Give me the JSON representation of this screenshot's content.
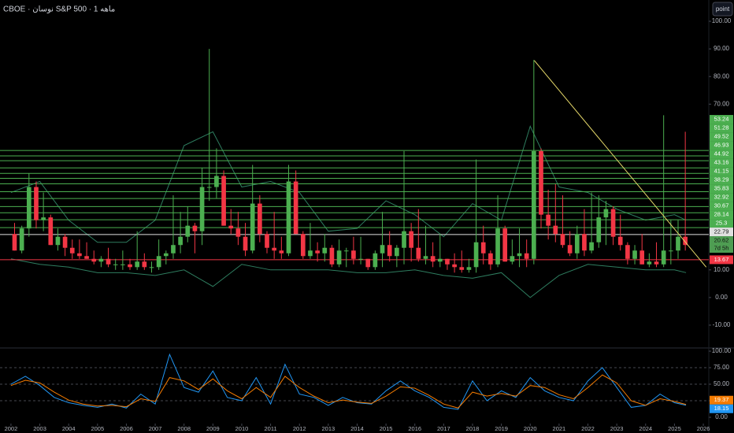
{
  "header": {
    "title": "CBOE · نوسان S&P 500 · 1 ماهه",
    "button": "point"
  },
  "chart_data": [
    {
      "type": "candlestick",
      "x": [
        2002.125,
        2002.375,
        2002.625,
        2002.875,
        2003.125,
        2003.375,
        2003.625,
        2003.875,
        2004.125,
        2004.375,
        2004.625,
        2004.875,
        2005.125,
        2005.375,
        2005.625,
        2005.875,
        2006.125,
        2006.375,
        2006.625,
        2006.875,
        2007.125,
        2007.375,
        2007.625,
        2007.875,
        2008.125,
        2008.375,
        2008.625,
        2008.875,
        2009.125,
        2009.375,
        2009.625,
        2009.875,
        2010.125,
        2010.375,
        2010.625,
        2010.875,
        2011.125,
        2011.375,
        2011.625,
        2011.875,
        2012.125,
        2012.375,
        2012.625,
        2012.875,
        2013.125,
        2013.375,
        2013.625,
        2013.875,
        2014.125,
        2014.375,
        2014.625,
        2014.875,
        2015.125,
        2015.375,
        2015.625,
        2015.875,
        2016.125,
        2016.375,
        2016.625,
        2016.875,
        2017.125,
        2017.375,
        2017.625,
        2017.875,
        2018.125,
        2018.375,
        2018.625,
        2018.875,
        2019.125,
        2019.375,
        2019.625,
        2019.875,
        2020.125,
        2020.375,
        2020.625,
        2020.875,
        2021.125,
        2021.375,
        2021.625,
        2021.875,
        2022.125,
        2022.375,
        2022.625,
        2022.875,
        2023.125,
        2023.375,
        2023.625,
        2023.875,
        2024.125,
        2024.375,
        2024.625,
        2024.875,
        2025.125,
        2025.375
      ],
      "open": [
        23,
        17,
        25,
        40,
        28,
        29,
        19,
        22,
        18,
        16,
        15,
        14,
        13,
        14,
        12,
        12,
        12,
        11,
        13,
        11,
        11,
        15,
        16,
        19,
        22,
        26,
        24,
        40,
        40,
        44,
        26,
        25,
        22,
        17,
        34,
        23,
        18,
        17,
        16,
        42,
        23,
        15,
        17,
        16,
        18,
        12,
        17,
        17,
        14,
        14,
        11,
        16,
        19,
        15,
        18,
        24,
        18,
        14,
        15,
        13,
        14,
        12,
        11,
        10,
        11,
        20,
        16,
        12,
        25,
        13,
        15,
        16,
        14,
        53,
        30,
        26,
        23,
        19,
        16,
        23,
        17,
        20,
        29,
        32,
        22,
        19,
        14,
        17,
        12,
        13,
        12,
        17,
        17,
        22
      ],
      "high": [
        27,
        26,
        45,
        42,
        38,
        30,
        25,
        23,
        21,
        21,
        20,
        17,
        15,
        18,
        14,
        17,
        14,
        24,
        16,
        13,
        21,
        17,
        37,
        31,
        33,
        27,
        47,
        90,
        54,
        46,
        32,
        31,
        27,
        48,
        37,
        24,
        31,
        22,
        48,
        46,
        24,
        27,
        20,
        23,
        19,
        21,
        18,
        22,
        22,
        14,
        17,
        31,
        24,
        19,
        53,
        27,
        32,
        26,
        20,
        23,
        14,
        16,
        17,
        14,
        50,
        26,
        17,
        37,
        26,
        21,
        25,
        21,
        86,
        54,
        39,
        41,
        37,
        24,
        26,
        32,
        38,
        37,
        35,
        33,
        30,
        20,
        19,
        23,
        16,
        20,
        66,
        28,
        28,
        60
      ],
      "low": [
        17,
        16,
        22,
        25,
        24,
        19,
        17,
        15,
        14,
        14,
        14,
        12,
        11,
        11,
        10,
        10,
        10,
        10,
        10,
        9,
        10,
        12,
        14,
        16,
        20,
        16,
        19,
        35,
        36,
        26,
        23,
        19,
        15,
        16,
        20,
        16,
        14,
        14,
        15,
        23,
        14,
        14,
        13,
        13,
        11,
        11,
        11,
        12,
        12,
        10,
        10,
        11,
        13,
        11,
        12,
        13,
        13,
        12,
        11,
        11,
        10,
        9,
        9,
        9,
        9,
        12,
        10,
        11,
        13,
        12,
        11,
        11,
        12,
        25,
        21,
        20,
        18,
        15,
        14,
        15,
        16,
        18,
        19,
        19,
        17,
        12,
        12,
        12,
        11,
        11,
        11,
        12,
        14,
        17
      ],
      "close": [
        17,
        25,
        40,
        28,
        29,
        19,
        22,
        18,
        16,
        15,
        14,
        13,
        14,
        12,
        12,
        12,
        11,
        13,
        11,
        11,
        15,
        16,
        19,
        22,
        26,
        24,
        40,
        40,
        44,
        26,
        25,
        22,
        17,
        34,
        23,
        18,
        17,
        16,
        42,
        23,
        15,
        17,
        16,
        18,
        12,
        17,
        17,
        14,
        14,
        11,
        16,
        19,
        15,
        18,
        24,
        18,
        14,
        15,
        13,
        14,
        12,
        11,
        10,
        11,
        20,
        16,
        12,
        25,
        13,
        15,
        16,
        14,
        53,
        30,
        26,
        23,
        19,
        16,
        23,
        17,
        20,
        29,
        32,
        22,
        19,
        14,
        17,
        12,
        13,
        12,
        17,
        17,
        22,
        19
      ],
      "up_color": "#4caf50",
      "down_color": "#f23645",
      "bands": {
        "color": "#2e7d5f",
        "x": [
          2002,
          2003,
          2004,
          2005,
          2006,
          2007,
          2008,
          2009,
          2010,
          2011,
          2012,
          2013,
          2014,
          2015,
          2016,
          2017,
          2018,
          2019,
          2020,
          2021,
          2022,
          2023,
          2024,
          2025,
          2025.4
        ],
        "upper": [
          38,
          42,
          28,
          20,
          20,
          28,
          55,
          60,
          40,
          42,
          38,
          24,
          25,
          35,
          30,
          22,
          34,
          28,
          62,
          40,
          38,
          32,
          28,
          30,
          28
        ],
        "lower": [
          14,
          12,
          11,
          9,
          9,
          8,
          10,
          4,
          12,
          10,
          10,
          10,
          9,
          9,
          10,
          8,
          7,
          9,
          0,
          8,
          12,
          11,
          10,
          10,
          9
        ]
      },
      "trendline": {
        "x": [
          2020.14,
          2026.1
        ],
        "values": [
          85.8,
          11
        ],
        "color": "#e6d96a"
      },
      "levels": [
        {
          "value": 53.24,
          "color": "#4caf50"
        },
        {
          "value": 51.28,
          "color": "#4caf50"
        },
        {
          "value": 49.52,
          "color": "#4caf50"
        },
        {
          "value": 46.93,
          "color": "#4caf50"
        },
        {
          "value": 44.92,
          "color": "#4caf50"
        },
        {
          "value": 43.16,
          "color": "#4caf50"
        },
        {
          "value": 41.15,
          "color": "#4caf50"
        },
        {
          "value": 38.29,
          "color": "#4caf50"
        },
        {
          "value": 35.83,
          "color": "#4caf50"
        },
        {
          "value": 32.92,
          "color": "#4caf50"
        },
        {
          "value": 30.67,
          "color": "#4caf50"
        },
        {
          "value": 28.14,
          "color": "#4caf50"
        },
        {
          "value": 25.3,
          "color": "#4caf50"
        },
        {
          "value": 22.79,
          "color": "#e0e0e0"
        },
        {
          "value": 13.67,
          "color": "#f23645"
        }
      ],
      "last_price": {
        "value": 20.62,
        "countdown": "7d 5h",
        "color": "#5cb860"
      },
      "xlim": [
        2001.62,
        2026.19
      ],
      "ylim": [
        -17.7,
        107.7
      ],
      "yticks": [
        {
          "value": -10,
          "label": "-10.00"
        },
        {
          "value": 0,
          "label": "0.00"
        },
        {
          "value": 10,
          "label": "10.00"
        },
        {
          "value": 70,
          "label": "70.00"
        },
        {
          "value": 80,
          "label": "80.00"
        },
        {
          "value": 90,
          "label": "90.00"
        },
        {
          "value": 100,
          "label": "100.00"
        }
      ]
    },
    {
      "type": "line",
      "x": [
        2002,
        2002.5,
        2003,
        2003.5,
        2004,
        2004.5,
        2005,
        2005.5,
        2006,
        2006.5,
        2007,
        2007.5,
        2008,
        2008.5,
        2009,
        2009.5,
        2010,
        2010.5,
        2011,
        2011.5,
        2012,
        2012.5,
        2013,
        2013.5,
        2014,
        2014.5,
        2015,
        2015.5,
        2016,
        2016.5,
        2017,
        2017.5,
        2018,
        2018.5,
        2019,
        2019.5,
        2020,
        2020.5,
        2021,
        2021.5,
        2022,
        2022.5,
        2023,
        2023.5,
        2024,
        2024.5,
        2025,
        2025.4
      ],
      "series": [
        {
          "color": "#2196f3",
          "values": [
            50,
            62,
            48,
            30,
            22,
            18,
            15,
            20,
            14,
            35,
            20,
            95,
            45,
            38,
            70,
            30,
            25,
            60,
            20,
            80,
            35,
            30,
            18,
            30,
            22,
            20,
            40,
            55,
            40,
            30,
            15,
            12,
            55,
            25,
            40,
            30,
            60,
            40,
            30,
            25,
            55,
            75,
            45,
            15,
            18,
            35,
            22,
            18.15
          ]
        },
        {
          "color": "#f57c00",
          "values": [
            48,
            56,
            52,
            38,
            26,
            20,
            17,
            18,
            16,
            28,
            24,
            60,
            55,
            42,
            58,
            40,
            28,
            45,
            30,
            62,
            45,
            32,
            22,
            26,
            23,
            21,
            32,
            46,
            44,
            33,
            20,
            14,
            38,
            32,
            36,
            32,
            48,
            45,
            34,
            28,
            45,
            64,
            52,
            25,
            18,
            28,
            24,
            19.37
          ]
        }
      ],
      "dashed_levels": [
        25,
        50,
        75
      ],
      "xlim": [
        2001.62,
        2026.19
      ],
      "ylim": [
        -9.5,
        103.6
      ],
      "xticks": [
        2002,
        2003,
        2004,
        2005,
        2006,
        2007,
        2008,
        2009,
        2010,
        2011,
        2012,
        2013,
        2014,
        2015,
        2016,
        2017,
        2018,
        2019,
        2020,
        2021,
        2022,
        2023,
        2024,
        2025,
        2026
      ],
      "yticks": [
        {
          "value": 0,
          "label": "0.00"
        },
        {
          "value": 25,
          "label": "25.00"
        },
        {
          "value": 50,
          "label": "50.00"
        },
        {
          "value": 75,
          "label": "75.00"
        },
        {
          "value": 100,
          "label": "100.00"
        }
      ]
    }
  ]
}
